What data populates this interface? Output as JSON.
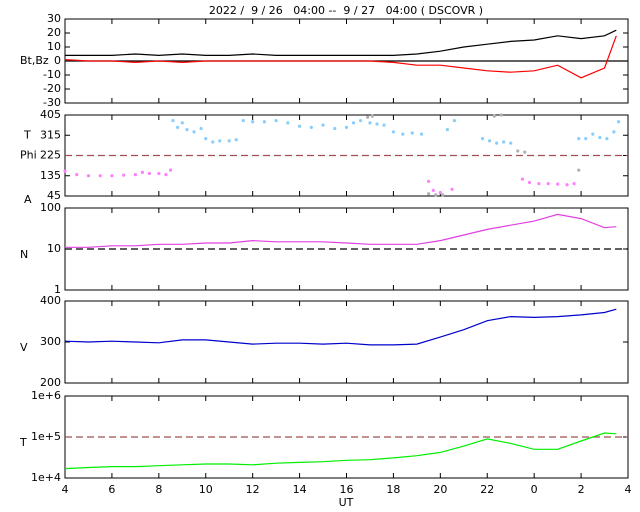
{
  "title": "2022 /  9 / 26   04:00 --  9 / 27   04:00 ( DSCOVR )",
  "x_axis": {
    "label": "UT",
    "xlim": [
      4,
      28
    ],
    "xticks": [
      4,
      6,
      8,
      10,
      12,
      14,
      16,
      18,
      20,
      22,
      {
        "value": 24,
        "label": "0"
      },
      {
        "value": 26,
        "label": "2"
      },
      {
        "value": 28,
        "label": "4"
      }
    ]
  },
  "chart_data": [
    {
      "type": "line",
      "ylabel": "Bt,Bz",
      "ylim": [
        -30,
        30
      ],
      "yticks": [
        -30,
        -20,
        -10,
        0,
        10,
        20,
        30
      ],
      "log": false,
      "hlines": [
        {
          "value": 0,
          "color": "#000000",
          "dashed": false
        }
      ],
      "x": [
        4,
        5,
        6,
        7,
        8,
        9,
        10,
        11,
        12,
        13,
        14,
        15,
        16,
        17,
        18,
        19,
        20,
        21,
        22,
        23,
        24,
        25,
        26,
        27,
        27.5
      ],
      "series": [
        {
          "color": "#000000",
          "values": [
            4,
            4,
            4,
            5,
            4,
            5,
            4,
            4,
            5,
            4,
            4,
            4,
            4,
            4,
            4,
            5,
            7,
            10,
            12,
            14,
            15,
            18,
            16,
            18,
            22
          ]
        },
        {
          "color": "#ff0000",
          "values": [
            1,
            0,
            0,
            -1,
            0,
            -1,
            0,
            0,
            0,
            0,
            0,
            0,
            0,
            0,
            -1,
            -3,
            -3,
            -5,
            -7,
            -8,
            -7,
            -3,
            -12,
            -5,
            18
          ]
        }
      ]
    },
    {
      "type": "scatter",
      "ylabel": [
        "T",
        "Phi",
        "A"
      ],
      "ylim": [
        45,
        405
      ],
      "yticks": [
        45,
        135,
        225,
        315,
        405
      ],
      "log": false,
      "hlines": [
        {
          "value": 225,
          "color": "#a05050",
          "dashed": true
        }
      ],
      "series": [
        {
          "color": "#87cefa",
          "x": [
            8.6,
            8.8,
            9.0,
            9.2,
            9.5,
            9.8,
            10.0,
            10.3,
            10.6,
            11.0,
            11.3,
            11.6,
            12.0,
            12.5,
            13.0,
            13.5,
            14.0,
            14.5,
            15.0,
            15.5,
            16.0,
            16.3,
            16.6,
            17.0,
            17.3,
            17.6,
            18.0,
            18.4,
            18.8,
            19.2,
            20.3,
            20.6,
            21.8,
            22.1,
            22.4,
            22.7,
            23.0,
            25.9,
            26.2,
            26.5,
            26.8,
            27.1,
            27.4,
            27.6
          ],
          "values": [
            380,
            350,
            370,
            340,
            330,
            345,
            300,
            285,
            290,
            290,
            295,
            380,
            375,
            375,
            380,
            370,
            355,
            350,
            360,
            345,
            350,
            370,
            380,
            370,
            365,
            360,
            330,
            320,
            325,
            320,
            340,
            380,
            300,
            290,
            280,
            285,
            280,
            300,
            300,
            320,
            305,
            300,
            330,
            375
          ]
        },
        {
          "color": "#ff80ff",
          "x": [
            4.0,
            4.5,
            5.0,
            5.5,
            6.0,
            6.5,
            7.0,
            7.3,
            7.6,
            8.0,
            8.3,
            8.5,
            19.5,
            19.7,
            20.0,
            20.5,
            23.5,
            23.8,
            24.2,
            24.6,
            25.0,
            25.4,
            25.7
          ],
          "values": [
            155,
            140,
            135,
            135,
            135,
            138,
            140,
            150,
            145,
            145,
            140,
            160,
            110,
            70,
            60,
            75,
            120,
            105,
            100,
            100,
            98,
            95,
            100
          ]
        },
        {
          "color": "#b0b0b0",
          "x": [
            16.9,
            17.1,
            19.5,
            19.8,
            20.1,
            22.3,
            22.6,
            23.3,
            23.6,
            25.9
          ],
          "values": [
            395,
            400,
            55,
            50,
            50,
            400,
            405,
            245,
            240,
            160
          ]
        }
      ]
    },
    {
      "type": "line",
      "ylabel": "N",
      "ylim": [
        1,
        100
      ],
      "yticks": [
        1,
        10,
        100
      ],
      "log": true,
      "hlines": [
        {
          "value": 10,
          "color": "#000000",
          "dashed": true
        }
      ],
      "x": [
        4,
        5,
        6,
        7,
        8,
        9,
        10,
        11,
        12,
        13,
        14,
        15,
        16,
        17,
        18,
        19,
        20,
        21,
        22,
        23,
        24,
        25,
        26,
        27,
        27.5
      ],
      "series": [
        {
          "color": "#e040e0",
          "values": [
            11,
            11,
            12,
            12,
            13,
            13,
            14,
            14,
            16,
            15,
            15,
            15,
            14,
            13,
            13,
            13,
            16,
            22,
            30,
            38,
            48,
            70,
            55,
            33,
            35
          ]
        }
      ]
    },
    {
      "type": "line",
      "ylabel": "V",
      "ylim": [
        200,
        400
      ],
      "yticks": [
        200,
        300,
        400
      ],
      "log": false,
      "hlines": [],
      "x": [
        4,
        5,
        6,
        7,
        8,
        9,
        10,
        11,
        12,
        13,
        14,
        15,
        16,
        17,
        18,
        19,
        20,
        21,
        22,
        23,
        24,
        25,
        26,
        27,
        27.5
      ],
      "series": [
        {
          "color": "#0000cc",
          "values": [
            302,
            300,
            302,
            300,
            298,
            305,
            305,
            300,
            295,
            297,
            297,
            295,
            297,
            293,
            293,
            295,
            312,
            330,
            352,
            362,
            360,
            362,
            366,
            372,
            380
          ]
        }
      ]
    },
    {
      "type": "line",
      "ylabel": "T",
      "ylim": [
        10000,
        1000000
      ],
      "yticks": [
        {
          "value": 10000,
          "label": "1e+4"
        },
        {
          "value": 100000,
          "label": "1e+5"
        },
        {
          "value": 1000000,
          "label": "1e+6"
        }
      ],
      "log": true,
      "hlines": [
        {
          "value": 100000,
          "color": "#a05050",
          "dashed": true
        }
      ],
      "x": [
        4,
        5,
        6,
        7,
        8,
        9,
        10,
        11,
        12,
        13,
        14,
        15,
        16,
        17,
        18,
        19,
        20,
        21,
        22,
        23,
        24,
        25,
        26,
        27,
        27.5
      ],
      "series": [
        {
          "color": "#00ee00",
          "values": [
            17000,
            18000,
            19000,
            19000,
            20000,
            21000,
            22000,
            22000,
            21000,
            23000,
            24000,
            25000,
            27000,
            28000,
            31000,
            35000,
            42000,
            60000,
            90000,
            70000,
            50000,
            50000,
            80000,
            125000,
            120000
          ]
        }
      ]
    }
  ]
}
